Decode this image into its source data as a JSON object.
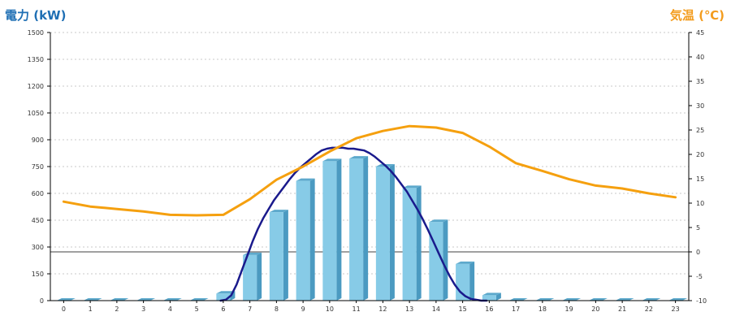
{
  "titles": {
    "left": "電力 (kW)",
    "right": "気温 (℃)"
  },
  "colors": {
    "bar_face": "#87cbe7",
    "bar_top": "#5da9cc",
    "bar_side": "#4b9ac1",
    "power_line": "#1a1a8c",
    "temp_line": "#f5a00f",
    "grid": "#c8c8c8",
    "axis": "#000000"
  },
  "chart_data": {
    "type": "bar",
    "categories": [
      "0",
      "1",
      "2",
      "3",
      "4",
      "5",
      "6",
      "7",
      "8",
      "9",
      "10",
      "11",
      "12",
      "13",
      "14",
      "15",
      "16",
      "17",
      "18",
      "19",
      "20",
      "21",
      "22",
      "23"
    ],
    "y_left": {
      "label": "電力 (kW)",
      "ylim": [
        0,
        1500
      ],
      "ticks": [
        "0",
        "150",
        "300",
        "450",
        "600",
        "750",
        "900",
        "1050",
        "1200",
        "1350",
        "1500"
      ]
    },
    "y_right": {
      "label": "気温 (℃)",
      "ylim": [
        -10,
        45
      ],
      "ticks": [
        "-10",
        "-5",
        "0",
        "5",
        "10",
        "15",
        "20",
        "25",
        "30",
        "35",
        "40",
        "45"
      ]
    },
    "grid": true,
    "series": [
      {
        "kind": "bar",
        "axis": "left",
        "values": [
          0,
          0,
          0,
          0,
          0,
          0,
          40,
          255,
          495,
          670,
          780,
          795,
          750,
          630,
          440,
          205,
          30,
          0,
          0,
          0,
          0,
          0,
          0,
          0
        ]
      },
      {
        "kind": "line",
        "axis": "left",
        "x": [
          5.9,
          6.1,
          6.3,
          6.5,
          6.7,
          6.9,
          7.1,
          7.3,
          7.5,
          7.7,
          7.9,
          8.1,
          8.3,
          8.5,
          8.7,
          8.9,
          9.1,
          9.3,
          9.5,
          9.7,
          9.9,
          10.1,
          10.3,
          10.5,
          10.7,
          10.9,
          11.1,
          11.3,
          11.5,
          11.7,
          11.9,
          12.1,
          12.3,
          12.5,
          12.7,
          12.9,
          13.1,
          13.3,
          13.5,
          13.7,
          13.9,
          14.1,
          14.3,
          14.5,
          14.7,
          14.9,
          15.1,
          15.3,
          15.5,
          15.7,
          15.9
        ],
        "values": [
          0,
          5,
          30,
          90,
          170,
          250,
          330,
          400,
          460,
          510,
          560,
          600,
          640,
          680,
          715,
          745,
          770,
          795,
          820,
          840,
          850,
          855,
          855,
          855,
          850,
          850,
          845,
          840,
          825,
          805,
          780,
          755,
          725,
          690,
          650,
          610,
          560,
          510,
          455,
          395,
          330,
          265,
          200,
          140,
          90,
          50,
          25,
          10,
          5,
          0,
          0
        ]
      },
      {
        "kind": "line",
        "axis": "right",
        "x": [
          0,
          1,
          2,
          3,
          4,
          5,
          6,
          7,
          8,
          9,
          10,
          11,
          12,
          13,
          14,
          15,
          16,
          17,
          18,
          19,
          20,
          21,
          22,
          23
        ],
        "values": [
          10.3,
          9.3,
          8.8,
          8.3,
          7.6,
          7.5,
          7.6,
          10.8,
          14.8,
          17.5,
          20.6,
          23.3,
          24.8,
          25.8,
          25.5,
          24.4,
          21.6,
          18.2,
          16.6,
          14.9,
          13.6,
          13.0,
          12.0,
          11.2
        ]
      }
    ]
  }
}
